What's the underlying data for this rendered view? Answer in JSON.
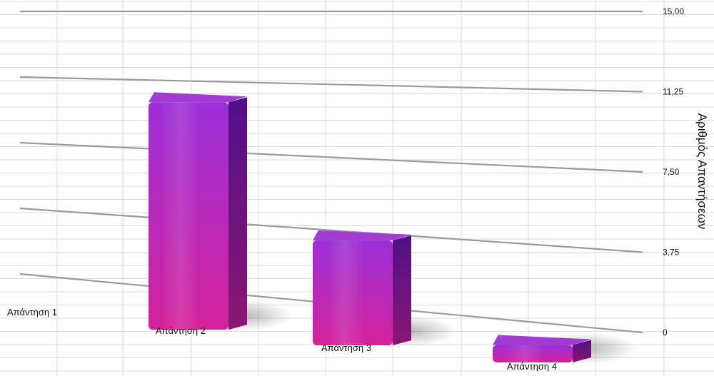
{
  "chart_data": {
    "type": "bar",
    "title": "",
    "xlabel": "",
    "ylabel": "Αριθμός Απαντήσεων",
    "categories": [
      "Απάντηση 1",
      "Απάντηση 2",
      "Απάντηση 3",
      "Απάντηση 4"
    ],
    "values": [
      0,
      13,
      6,
      1
    ],
    "ylim": [
      0,
      15
    ],
    "yticks": [
      "0",
      "3,75",
      "7,50",
      "11,25",
      "15,00"
    ],
    "ytick_values": [
      0,
      3.75,
      7.5,
      11.25,
      15
    ],
    "grid": true,
    "style": "3d",
    "colors": {
      "bar_top": "#9b2fd8",
      "bar_bottom": "#d4229a",
      "bar_side": "#5a1390",
      "bar_cap": "#a13bd2"
    }
  }
}
